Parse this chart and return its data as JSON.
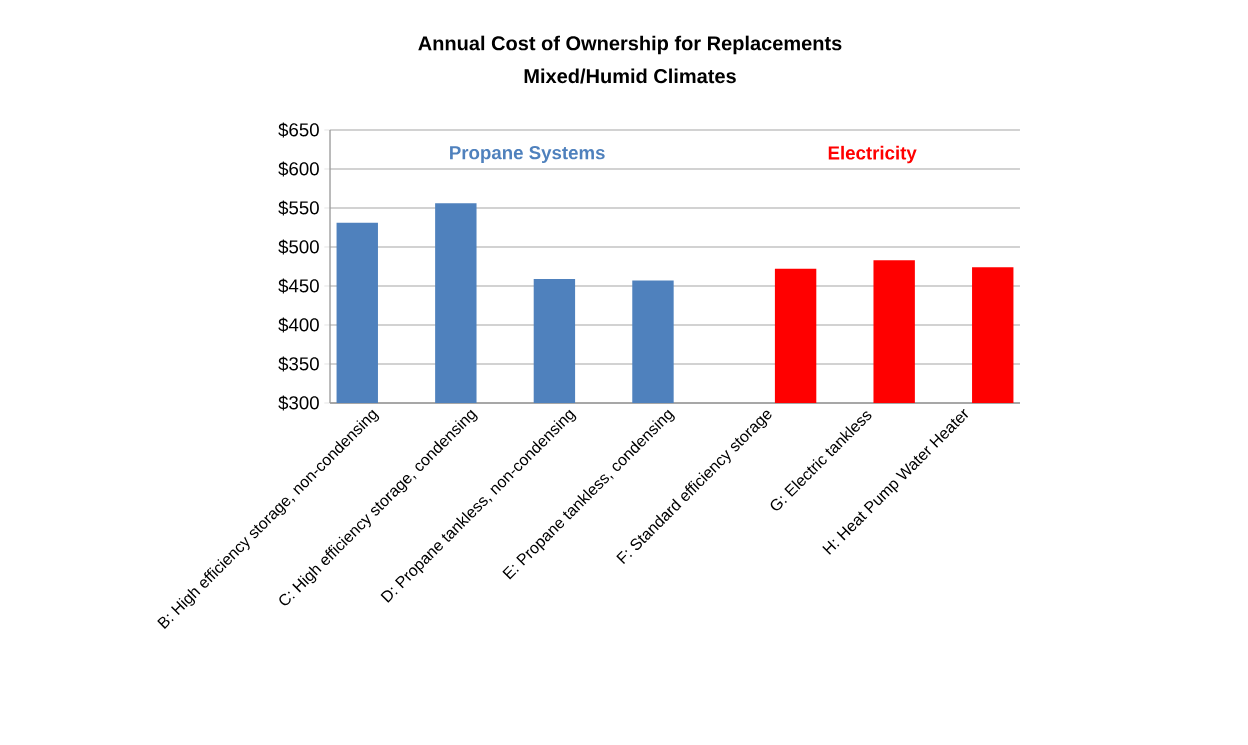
{
  "chart_data": {
    "type": "bar",
    "title": "Annual Cost of Ownership for Replacements",
    "subtitle": "Mixed/Humid Climates",
    "categories": [
      "B: High efficiency storage, non-condensing",
      "C: High efficiency storage, condensing",
      "D: Propane tankless, non-condensing",
      "E: Propane tankless, condensing",
      "F: Standard efficiency storage",
      "G: Electric tankless",
      "H: Heat Pump Water Heater"
    ],
    "series": [
      {
        "name": "Propane Systems",
        "color": "#4f81bd",
        "values": [
          531,
          556,
          459,
          457,
          null,
          null,
          null
        ]
      },
      {
        "name": "Electricity",
        "color": "#ff0000",
        "values": [
          null,
          null,
          null,
          null,
          472,
          483,
          474
        ]
      }
    ],
    "ylim": [
      300,
      650
    ],
    "yticks": [
      {
        "value": 300,
        "label": "$300"
      },
      {
        "value": 350,
        "label": "$350"
      },
      {
        "value": 400,
        "label": "$400"
      },
      {
        "value": 450,
        "label": "$450"
      },
      {
        "value": 500,
        "label": "$500"
      },
      {
        "value": 550,
        "label": "$550"
      },
      {
        "value": 600,
        "label": "$600"
      },
      {
        "value": 650,
        "label": "$650"
      }
    ],
    "grid": "y"
  }
}
